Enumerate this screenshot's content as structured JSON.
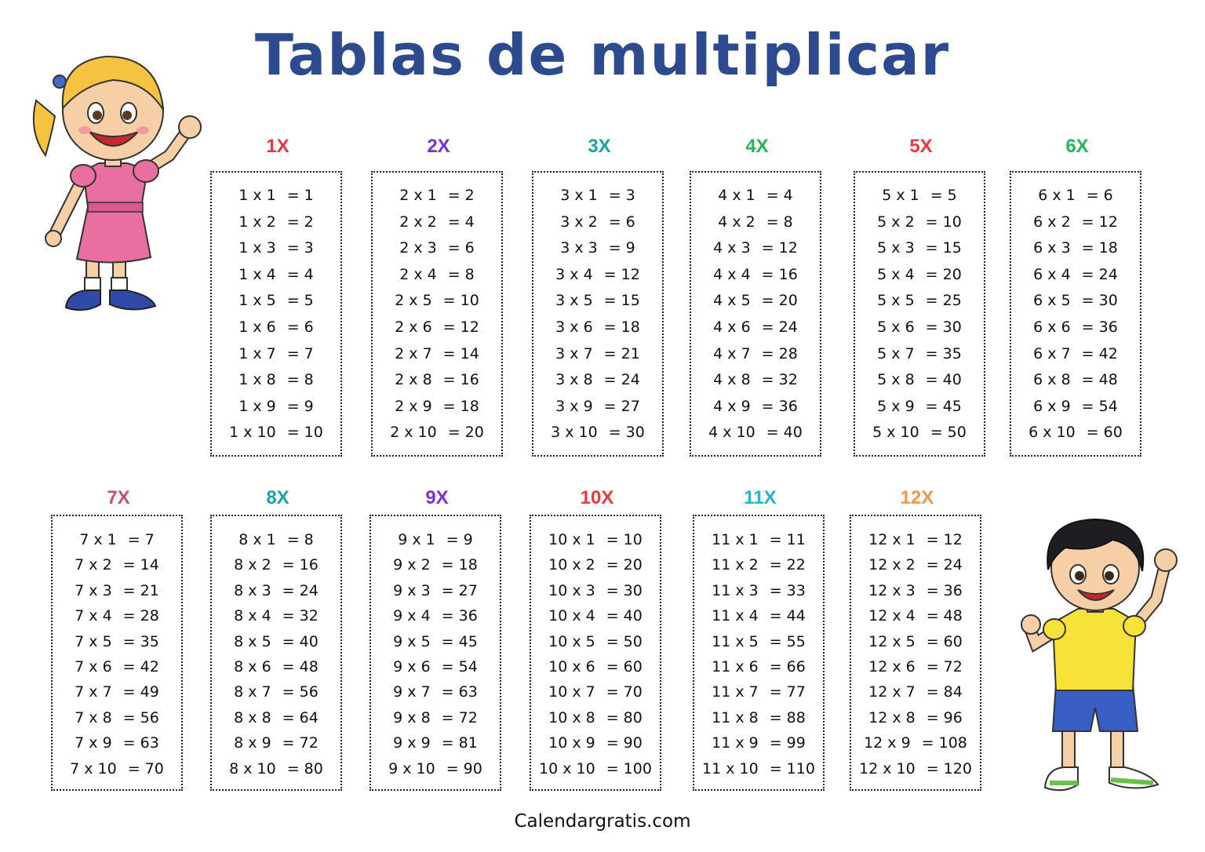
{
  "title": "Tablas de multiplicar",
  "footer": "Calendargratis.com",
  "illustrations": [
    "girl-waving-illustration",
    "boy-waving-illustration"
  ],
  "tables": [
    {
      "label": "1X",
      "color": "#f0353c",
      "rows": [
        [
          "1 x 1",
          "= 1"
        ],
        [
          "1 x 2",
          "= 2"
        ],
        [
          "1 x 3",
          "= 3"
        ],
        [
          "1 x 4",
          "= 4"
        ],
        [
          "1 x 5",
          "= 5"
        ],
        [
          "1 x 6",
          "= 6"
        ],
        [
          "1 x 7",
          "= 7"
        ],
        [
          "1 x 8",
          "= 8"
        ],
        [
          "1 x 9",
          "= 9"
        ],
        [
          "1 x 10",
          "= 10"
        ]
      ]
    },
    {
      "label": "2X",
      "color": "#7c2fd6",
      "rows": [
        [
          "2 x 1",
          "= 2"
        ],
        [
          "2 x 2",
          "= 4"
        ],
        [
          "2 x 3",
          "= 6"
        ],
        [
          "2 x 4",
          "= 8"
        ],
        [
          "2 x 5",
          "= 10"
        ],
        [
          "2 x 6",
          "= 12"
        ],
        [
          "2 x 7",
          "= 14"
        ],
        [
          "2 x 8",
          "= 16"
        ],
        [
          "2 x 9",
          "= 18"
        ],
        [
          "2 x 10",
          "= 20"
        ]
      ]
    },
    {
      "label": "3X",
      "color": "#1aa3a8",
      "rows": [
        [
          "3 x 1",
          "= 3"
        ],
        [
          "3 x 2",
          "= 6"
        ],
        [
          "3 x 3",
          "= 9"
        ],
        [
          "3 x 4",
          "= 12"
        ],
        [
          "3 x 5",
          "= 15"
        ],
        [
          "3 x 6",
          "= 18"
        ],
        [
          "3 x 7",
          "= 21"
        ],
        [
          "3 x 8",
          "= 24"
        ],
        [
          "3 x 9",
          "= 27"
        ],
        [
          "3 x 10",
          "= 30"
        ]
      ]
    },
    {
      "label": "4X",
      "color": "#22b75a",
      "rows": [
        [
          "4 x 1",
          "= 4"
        ],
        [
          "4 x 2",
          "= 8"
        ],
        [
          "4 x 3",
          "= 12"
        ],
        [
          "4 x 4",
          "= 16"
        ],
        [
          "4 x 5",
          "= 20"
        ],
        [
          "4 x 6",
          "= 24"
        ],
        [
          "4 x 7",
          "= 28"
        ],
        [
          "4 x 8",
          "= 32"
        ],
        [
          "4 x 9",
          "= 36"
        ],
        [
          "4 x 10",
          "= 40"
        ]
      ]
    },
    {
      "label": "5X",
      "color": "#f0353c",
      "rows": [
        [
          "5 x 1",
          "= 5"
        ],
        [
          "5 x 2",
          "= 10"
        ],
        [
          "5 x 3",
          "= 15"
        ],
        [
          "5 x 4",
          "= 20"
        ],
        [
          "5 x 5",
          "= 25"
        ],
        [
          "5 x 6",
          "= 30"
        ],
        [
          "5 x 7",
          "= 35"
        ],
        [
          "5 x 8",
          "= 40"
        ],
        [
          "5 x 9",
          "= 45"
        ],
        [
          "5 x 10",
          "= 50"
        ]
      ]
    },
    {
      "label": "6X",
      "color": "#22b75a",
      "rows": [
        [
          "6 x 1",
          "= 6"
        ],
        [
          "6 x 2",
          "= 12"
        ],
        [
          "6 x 3",
          "= 18"
        ],
        [
          "6 x 4",
          "= 24"
        ],
        [
          "6 x 5",
          "= 30"
        ],
        [
          "6 x 6",
          "= 36"
        ],
        [
          "6 x 7",
          "= 42"
        ],
        [
          "6 x 8",
          "= 48"
        ],
        [
          "6 x 9",
          "= 54"
        ],
        [
          "6 x 10",
          "= 60"
        ]
      ]
    },
    {
      "label": "7X",
      "color": "#c0507a",
      "rows": [
        [
          "7 x 1",
          "= 7"
        ],
        [
          "7 x 2",
          "= 14"
        ],
        [
          "7 x 3",
          "= 21"
        ],
        [
          "7 x 4",
          "= 28"
        ],
        [
          "7 x 5",
          "= 35"
        ],
        [
          "7 x 6",
          "= 42"
        ],
        [
          "7 x 7",
          "= 49"
        ],
        [
          "7 x 8",
          "= 56"
        ],
        [
          "7 x 9",
          "= 63"
        ],
        [
          "7 x 10",
          "= 70"
        ]
      ]
    },
    {
      "label": "8X",
      "color": "#1aa3a8",
      "rows": [
        [
          "8 x 1",
          "= 8"
        ],
        [
          "8 x 2",
          "= 16"
        ],
        [
          "8 x 3",
          "= 24"
        ],
        [
          "8 x 4",
          "= 32"
        ],
        [
          "8 x 5",
          "= 40"
        ],
        [
          "8 x 6",
          "= 48"
        ],
        [
          "8 x 7",
          "= 56"
        ],
        [
          "8 x 8",
          "= 64"
        ],
        [
          "8 x 9",
          "= 72"
        ],
        [
          "8 x 10",
          "= 80"
        ]
      ]
    },
    {
      "label": "9X",
      "color": "#7c2fd6",
      "rows": [
        [
          "9 x 1",
          "= 9"
        ],
        [
          "9 x 2",
          "= 18"
        ],
        [
          "9 x 3",
          "= 27"
        ],
        [
          "9 x 4",
          "= 36"
        ],
        [
          "9 x 5",
          "= 45"
        ],
        [
          "9 x 6",
          "= 54"
        ],
        [
          "9 x 7",
          "= 63"
        ],
        [
          "9 x 8",
          "= 72"
        ],
        [
          "9 x 9",
          "= 81"
        ],
        [
          "9 x 10",
          "= 90"
        ]
      ]
    },
    {
      "label": "10X",
      "color": "#f0353c",
      "rows": [
        [
          "10 x 1",
          "= 10"
        ],
        [
          "10 x 2",
          "= 20"
        ],
        [
          "10 x 3",
          "= 30"
        ],
        [
          "10 x 4",
          "= 40"
        ],
        [
          "10 x 5",
          "= 50"
        ],
        [
          "10 x 6",
          "= 60"
        ],
        [
          "10 x 7",
          "= 70"
        ],
        [
          "10 x 8",
          "= 80"
        ],
        [
          "10 x 9",
          "= 90"
        ],
        [
          "10 x 10",
          "= 100"
        ]
      ]
    },
    {
      "label": "11X",
      "color": "#22b5d6",
      "rows": [
        [
          "11 x 1",
          "= 11"
        ],
        [
          "11 x 2",
          "= 22"
        ],
        [
          "11 x 3",
          "= 33"
        ],
        [
          "11 x 4",
          "= 44"
        ],
        [
          "11 x 5",
          "= 55"
        ],
        [
          "11 x 6",
          "= 66"
        ],
        [
          "11 x 7",
          "= 77"
        ],
        [
          "11 x 8",
          "= 88"
        ],
        [
          "11 x 9",
          "= 99"
        ],
        [
          "11 x 10",
          "= 110"
        ]
      ]
    },
    {
      "label": "12X",
      "color": "#f5954e",
      "rows": [
        [
          "12 x 1",
          "= 12"
        ],
        [
          "12 x 2",
          "= 24"
        ],
        [
          "12 x 3",
          "= 36"
        ],
        [
          "12 x 4",
          "= 48"
        ],
        [
          "12 x 5",
          "= 60"
        ],
        [
          "12 x 6",
          "= 72"
        ],
        [
          "12 x 7",
          "= 84"
        ],
        [
          "12 x 8",
          "= 96"
        ],
        [
          "12 x 9",
          "= 108"
        ],
        [
          "12 x 10",
          "= 120"
        ]
      ]
    }
  ]
}
